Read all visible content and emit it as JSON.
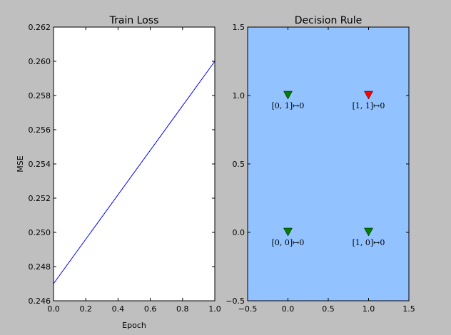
{
  "colors": {
    "figure_bg": "#bfbfbf",
    "loss_line": "#0000ff",
    "decision_bg": "#92c2ff",
    "marker_green": "#007f00",
    "marker_red": "#ff0000"
  },
  "chart_data": [
    {
      "type": "line",
      "title": "Train Loss",
      "xlabel": "Epoch",
      "ylabel": "MSE",
      "xlim": [
        0.0,
        1.0
      ],
      "ylim": [
        0.246,
        0.262
      ],
      "xticks": [
        "0.0",
        "0.2",
        "0.4",
        "0.6",
        "0.8",
        "1.0"
      ],
      "yticks": [
        "0.246",
        "0.248",
        "0.250",
        "0.252",
        "0.254",
        "0.256",
        "0.258",
        "0.260",
        "0.262"
      ],
      "series": [
        {
          "x": [
            0.0,
            1.0
          ],
          "y": [
            0.247,
            0.26
          ]
        }
      ],
      "grid": false
    },
    {
      "type": "scatter",
      "title": "Decision Rule",
      "xlim": [
        -0.5,
        1.5
      ],
      "ylim": [
        -0.5,
        1.5
      ],
      "xticks": [
        "−0.5",
        "0.0",
        "0.5",
        "1.0",
        "1.5"
      ],
      "yticks": [
        "−0.5",
        "0.0",
        "0.5",
        "1.0",
        "1.5"
      ],
      "region_color": "#92c2ff",
      "points": [
        {
          "x": 0,
          "y": 1,
          "color": "#007f00",
          "label": "[0, 1]↦0"
        },
        {
          "x": 1,
          "y": 1,
          "color": "#ff0000",
          "label": "[1, 1]↦0"
        },
        {
          "x": 0,
          "y": 0,
          "color": "#007f00",
          "label": "[0, 0]↦0"
        },
        {
          "x": 1,
          "y": 0,
          "color": "#007f00",
          "label": "[1, 0]↦0"
        }
      ],
      "marker": "triangle-down",
      "grid": false
    }
  ]
}
